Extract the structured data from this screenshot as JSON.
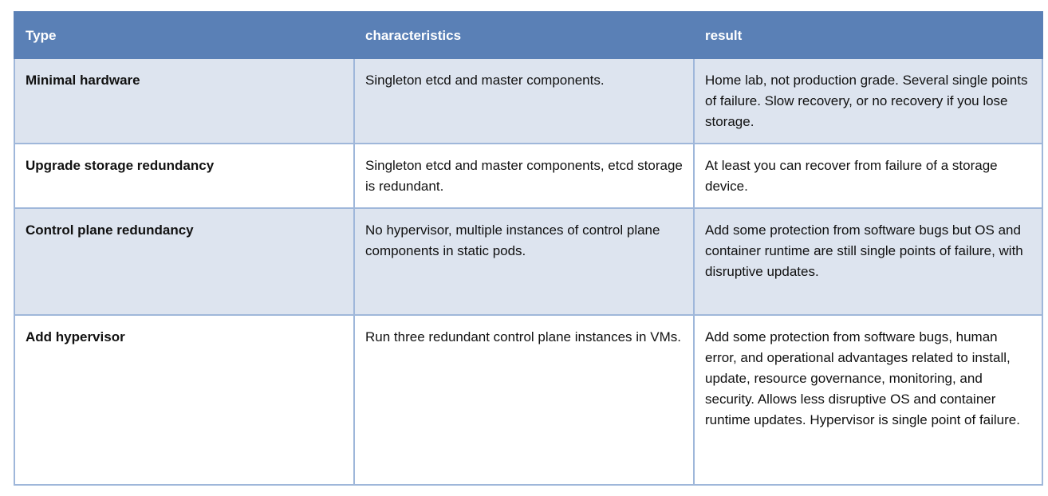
{
  "table": {
    "headers": [
      "Type",
      "characteristics",
      "result"
    ],
    "rows": [
      {
        "type": "Minimal hardware",
        "characteristics": "Singleton etcd and master components.",
        "result": "Home lab, not production grade. Several single points of failure. Slow recovery, or no recovery if you lose storage."
      },
      {
        "type": "Upgrade storage redundancy",
        "characteristics": "Singleton etcd and master components, etcd storage is redundant.",
        "result": "At least you can recover from failure of a storage device."
      },
      {
        "type": "Control plane redundancy",
        "characteristics": "No hypervisor, multiple instances of control plane components in static pods.",
        "result": "Add some protection from software bugs but OS and container runtime are still single points of failure, with disruptive updates."
      },
      {
        "type": "Add hypervisor",
        "characteristics": "Run three redundant control plane instances in VMs.",
        "result": "Add some protection from software bugs, human error, and operational advantages related to install, update, resource governance, monitoring, and security. Allows less disruptive OS and container runtime updates. Hypervisor is single point of failure."
      }
    ]
  },
  "colors": {
    "header_bg": "#5a80b6",
    "alt_row_bg": "#dde4ef",
    "border": "#9fb7da"
  }
}
